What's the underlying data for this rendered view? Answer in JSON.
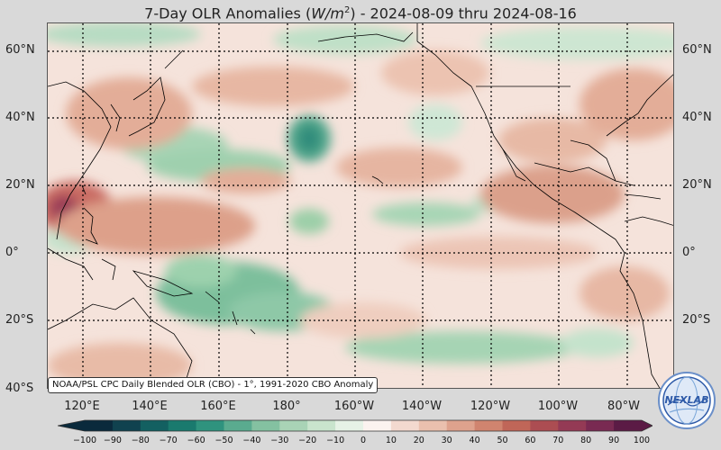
{
  "title": {
    "prefix": "7-Day OLR Anomalies (",
    "unit_base": "W/m",
    "unit_exp": "2",
    "suffix": ") - 2024-08-09 thru 2024-08-16"
  },
  "lat_labels": [
    "60°N",
    "40°N",
    "20°N",
    "0°",
    "20°S",
    "40°S"
  ],
  "lon_labels": [
    "120°E",
    "140°E",
    "160°E",
    "180°",
    "160°W",
    "140°W",
    "120°W",
    "100°W",
    "80°W"
  ],
  "source_note": "NOAA/PSL CPC Daily Blended OLR (CBO) - 1°, 1991-2020 CBO Anomaly",
  "colorbar": {
    "ticks": [
      "−100",
      "−90",
      "−80",
      "−70",
      "−60",
      "−50",
      "−40",
      "−30",
      "−20",
      "−10",
      "0",
      "10",
      "20",
      "30",
      "40",
      "50",
      "60",
      "70",
      "80",
      "90",
      "100"
    ],
    "colors": [
      "#0a2a3c",
      "#10424f",
      "#136061",
      "#1a7a6e",
      "#2f937e",
      "#5aab8f",
      "#84c1a1",
      "#a9d3b6",
      "#c9e4cd",
      "#e6f2e6",
      "#fbf3ef",
      "#f3d9cf",
      "#eac0ae",
      "#dea28d",
      "#d0846f",
      "#c06658",
      "#ac4d52",
      "#943a55",
      "#792a52",
      "#5b1b45"
    ]
  },
  "logo": {
    "text": "NEXLAB",
    "icon": "nexlab-globe-logo"
  },
  "colors": {
    "background": "#d9d9d9",
    "grid": "#000000",
    "coast": "#000000"
  }
}
